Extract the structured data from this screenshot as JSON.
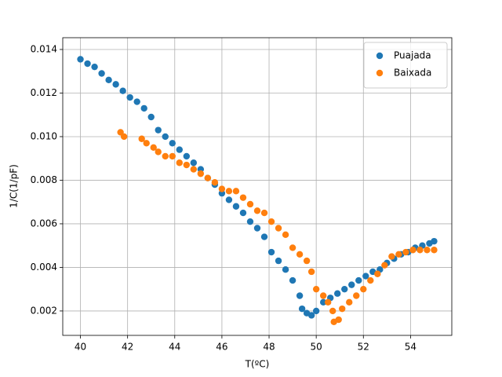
{
  "chart_data": {
    "type": "scatter",
    "x_label": "T(ºC)",
    "y_label": "1/C(1/pF)",
    "xlim": [
      39.25,
      55.75
    ],
    "ylim": [
      0.00088,
      0.01454
    ],
    "xticks": [
      40,
      42,
      44,
      46,
      48,
      50,
      52,
      54
    ],
    "yticks": [
      0.002,
      0.004,
      0.006,
      0.008,
      {
        "value": 0.01,
        "label": "0.010"
      },
      0.012,
      0.014
    ],
    "grid": true,
    "legend": "upper-right",
    "series": [
      {
        "name": "Puajada",
        "color": "#1f77b4",
        "x": [
          40.0,
          40.3,
          40.6,
          40.9,
          41.2,
          41.5,
          41.8,
          42.1,
          42.4,
          42.7,
          43.0,
          43.3,
          43.6,
          43.9,
          44.2,
          44.5,
          44.8,
          45.1,
          45.4,
          45.7,
          46.0,
          46.3,
          46.6,
          46.9,
          47.2,
          47.5,
          47.8,
          48.1,
          48.4,
          48.7,
          49.0,
          49.3,
          49.4,
          49.6,
          49.8,
          50.0,
          50.3,
          50.6,
          50.9,
          51.2,
          51.5,
          51.8,
          52.1,
          52.4,
          52.7,
          53.0,
          53.3,
          53.6,
          53.9,
          54.2,
          54.5,
          54.8,
          55.0
        ],
        "values": [
          0.01355,
          0.01335,
          0.0132,
          0.0129,
          0.0126,
          0.0124,
          0.0121,
          0.0118,
          0.0116,
          0.0113,
          0.0109,
          0.0103,
          0.01,
          0.0097,
          0.0094,
          0.0091,
          0.0088,
          0.0085,
          0.0081,
          0.0078,
          0.0074,
          0.0071,
          0.0068,
          0.0065,
          0.0061,
          0.0058,
          0.0054,
          0.0047,
          0.0043,
          0.0039,
          0.0034,
          0.0027,
          0.0021,
          0.0019,
          0.0018,
          0.002,
          0.0024,
          0.0026,
          0.0028,
          0.003,
          0.0032,
          0.0034,
          0.0036,
          0.0038,
          0.0039,
          0.0042,
          0.0044,
          0.0046,
          0.0047,
          0.0049,
          0.005,
          0.0051,
          0.0052
        ]
      },
      {
        "name": "Baixada",
        "color": "#ff7f0e",
        "x": [
          41.7,
          41.85,
          42.6,
          42.8,
          43.1,
          43.3,
          43.6,
          43.9,
          44.2,
          44.5,
          44.8,
          45.1,
          45.4,
          45.7,
          46.0,
          46.3,
          46.6,
          46.9,
          47.2,
          47.5,
          47.8,
          48.1,
          48.4,
          48.7,
          49.0,
          49.3,
          49.6,
          49.8,
          50.0,
          50.3,
          50.5,
          50.7,
          50.75,
          50.95,
          51.1,
          51.4,
          51.7,
          52.0,
          52.3,
          52.6,
          52.9,
          53.2,
          53.5,
          53.8,
          54.1,
          54.4,
          54.7,
          55.0
        ],
        "values": [
          0.0102,
          0.01,
          0.0099,
          0.0097,
          0.0095,
          0.0093,
          0.0091,
          0.0091,
          0.0088,
          0.0087,
          0.0085,
          0.0083,
          0.0081,
          0.0079,
          0.0076,
          0.0075,
          0.0075,
          0.0072,
          0.0069,
          0.0066,
          0.0065,
          0.0061,
          0.0058,
          0.0055,
          0.0049,
          0.0046,
          0.0043,
          0.0038,
          0.003,
          0.0027,
          0.0024,
          0.002,
          0.0015,
          0.0016,
          0.0021,
          0.0024,
          0.0027,
          0.003,
          0.0034,
          0.0037,
          0.0041,
          0.0045,
          0.0046,
          0.0047,
          0.0048,
          0.0048,
          0.0048,
          0.0048
        ]
      }
    ]
  }
}
